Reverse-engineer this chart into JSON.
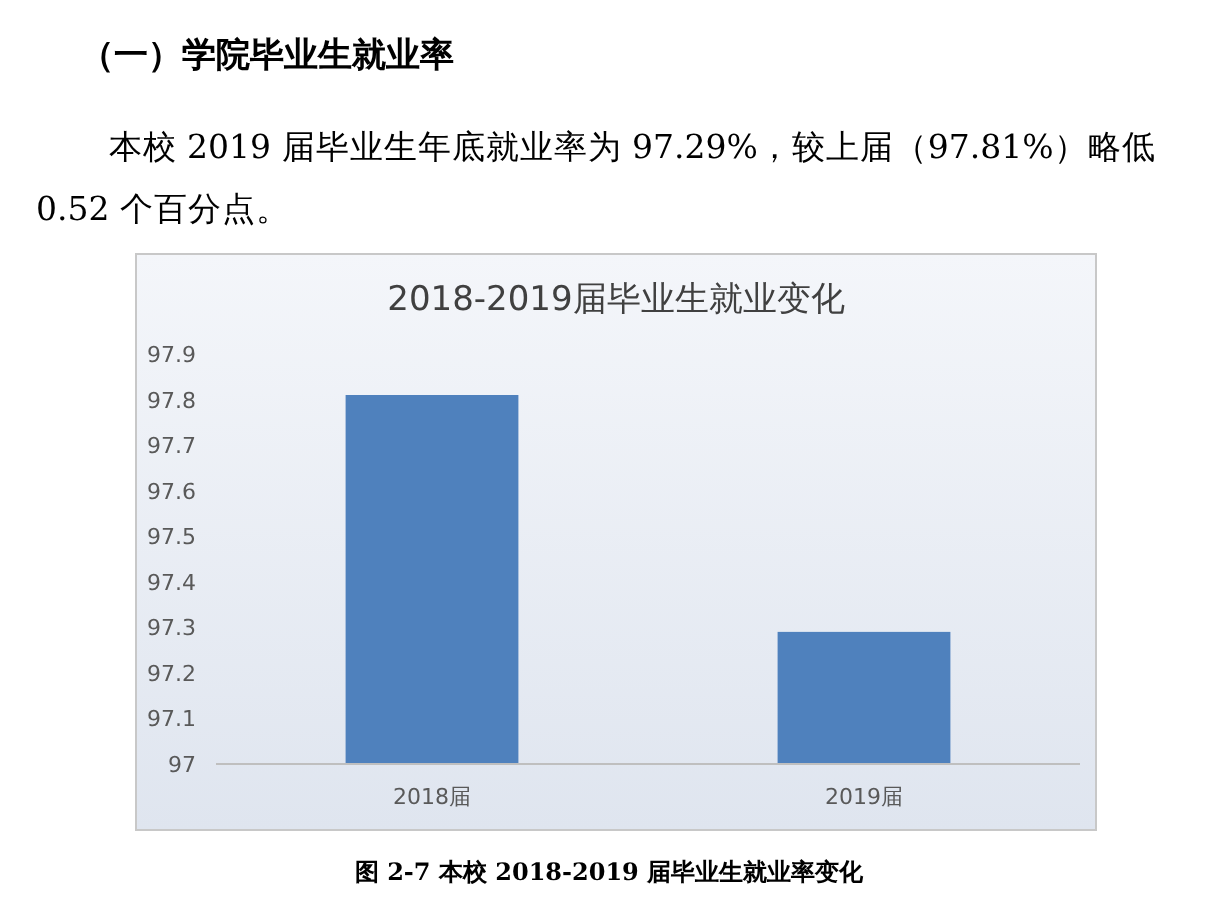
{
  "chart_data": {
    "type": "bar",
    "title": "2018-2019届毕业生就业变化",
    "categories": [
      "2018届",
      "2019届"
    ],
    "values": [
      97.81,
      97.29
    ],
    "color": "#4f81bd",
    "ylim": [
      97,
      97.9
    ],
    "yticks": [
      97,
      97.1,
      97.2,
      97.3,
      97.4,
      97.5,
      97.6,
      97.7,
      97.8,
      97.9
    ],
    "grid": false,
    "annotations": [
      "（一）学院毕业生就业率",
      "本校 2019 届毕业生年底就业率为 97.29%，较上届（97.81%）略低 0.52 个百分点。",
      "图 2-7  本校 2018-2019 届毕业生就业率变化"
    ]
  }
}
